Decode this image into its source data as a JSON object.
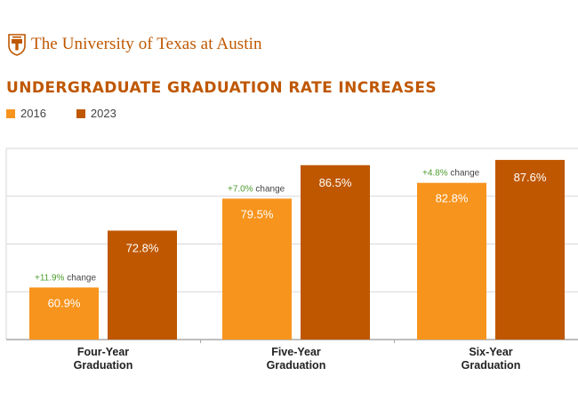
{
  "header": {
    "org_name": "The University of Texas at Austin",
    "logo_icon": "ut-tower-seal-icon"
  },
  "colors": {
    "brand": "#bf5700",
    "series_2016": "#f7941d",
    "series_2023": "#bf5700",
    "change_text": "#4a9c2d",
    "grid": "#d7d7d7",
    "axis": "#a9a9a9"
  },
  "chart_data": {
    "type": "bar",
    "title": "UNDERGRADUATE GRADUATION RATE INCREASES",
    "categories": [
      "Four-Year Graduation",
      "Five-Year Graduation",
      "Six-Year Graduation"
    ],
    "category_lines": [
      [
        "Four-Year",
        "Graduation"
      ],
      [
        "Five-Year",
        "Graduation"
      ],
      [
        "Six-Year",
        "Graduation"
      ]
    ],
    "series": [
      {
        "name": "2016",
        "values": [
          60.9,
          79.5,
          82.8
        ],
        "labels": [
          "60.9%",
          "79.5%",
          "82.8%"
        ]
      },
      {
        "name": "2023",
        "values": [
          72.8,
          86.5,
          87.6
        ],
        "labels": [
          "72.8%",
          "86.5%",
          "87.6%"
        ]
      }
    ],
    "annotations": [
      {
        "value": "+11.9%",
        "suffix": " change"
      },
      {
        "value": "+7.0%",
        "suffix": " change"
      },
      {
        "value": "+4.8%",
        "suffix": " change"
      }
    ],
    "xlabel": "",
    "ylabel": "",
    "ylim": [
      50,
      90
    ],
    "grid": true,
    "legend": "top-left"
  }
}
